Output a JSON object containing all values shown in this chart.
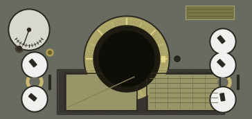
{
  "bg_color": "#686b60",
  "dark_brown": "#2a2820",
  "olive_tan": "#b0a86a",
  "knob_white": "#f0f0ee",
  "strip_color": "#383530",
  "meter_face": "#d8d8d0",
  "tan_ring": "#c8b870",
  "rect_display": "#989668",
  "dashed_border": "#585850",
  "top_rect_fill": "#7a7848",
  "top_rect_border": "#a0a070",
  "tick_major": "#e0d888",
  "tick_mid": "#c0b870",
  "tick_minor": "#a09858",
  "dial_dark": "#1e1c10",
  "dial_center": "#0e0e08",
  "grid_line": "#686040",
  "small_dot_color": "#484030"
}
